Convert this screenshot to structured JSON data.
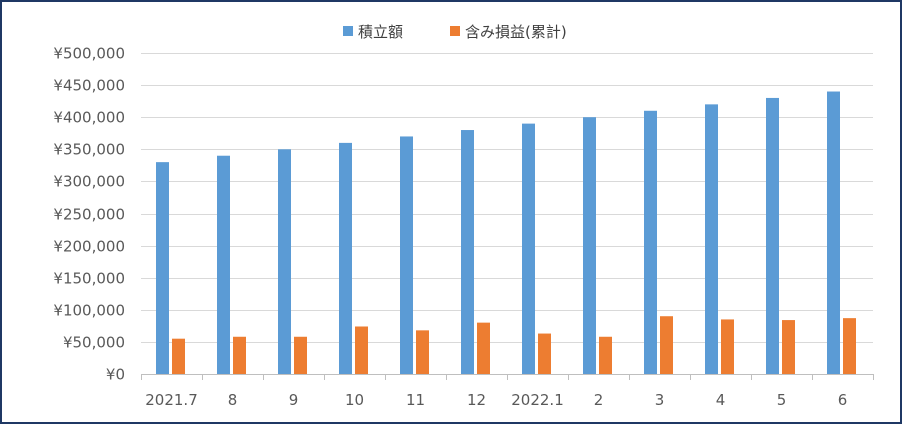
{
  "chart_data": {
    "type": "bar",
    "title": "",
    "xlabel": "",
    "ylabel": "",
    "categories": [
      "2021.7",
      "8",
      "9",
      "10",
      "11",
      "12",
      "2022.1",
      "2",
      "3",
      "4",
      "5",
      "6"
    ],
    "series": [
      {
        "name": "積立額",
        "color": "#5b9bd5",
        "values": [
          330000,
          340000,
          350000,
          360000,
          370000,
          380000,
          390000,
          400000,
          410000,
          420000,
          430000,
          440000
        ]
      },
      {
        "name": "含み損益(累計)",
        "color": "#ed7d31",
        "values": [
          55000,
          58000,
          58000,
          74000,
          68000,
          80000,
          63000,
          58000,
          90000,
          85000,
          84000,
          87000
        ]
      }
    ],
    "ylim": [
      0,
      500000
    ],
    "yticks": [
      "¥0",
      "¥50,000",
      "¥100,000",
      "¥150,000",
      "¥200,000",
      "¥250,000",
      "¥300,000",
      "¥350,000",
      "¥400,000",
      "¥450,000",
      "¥500,000"
    ],
    "grid": true,
    "legend_position": "top"
  }
}
